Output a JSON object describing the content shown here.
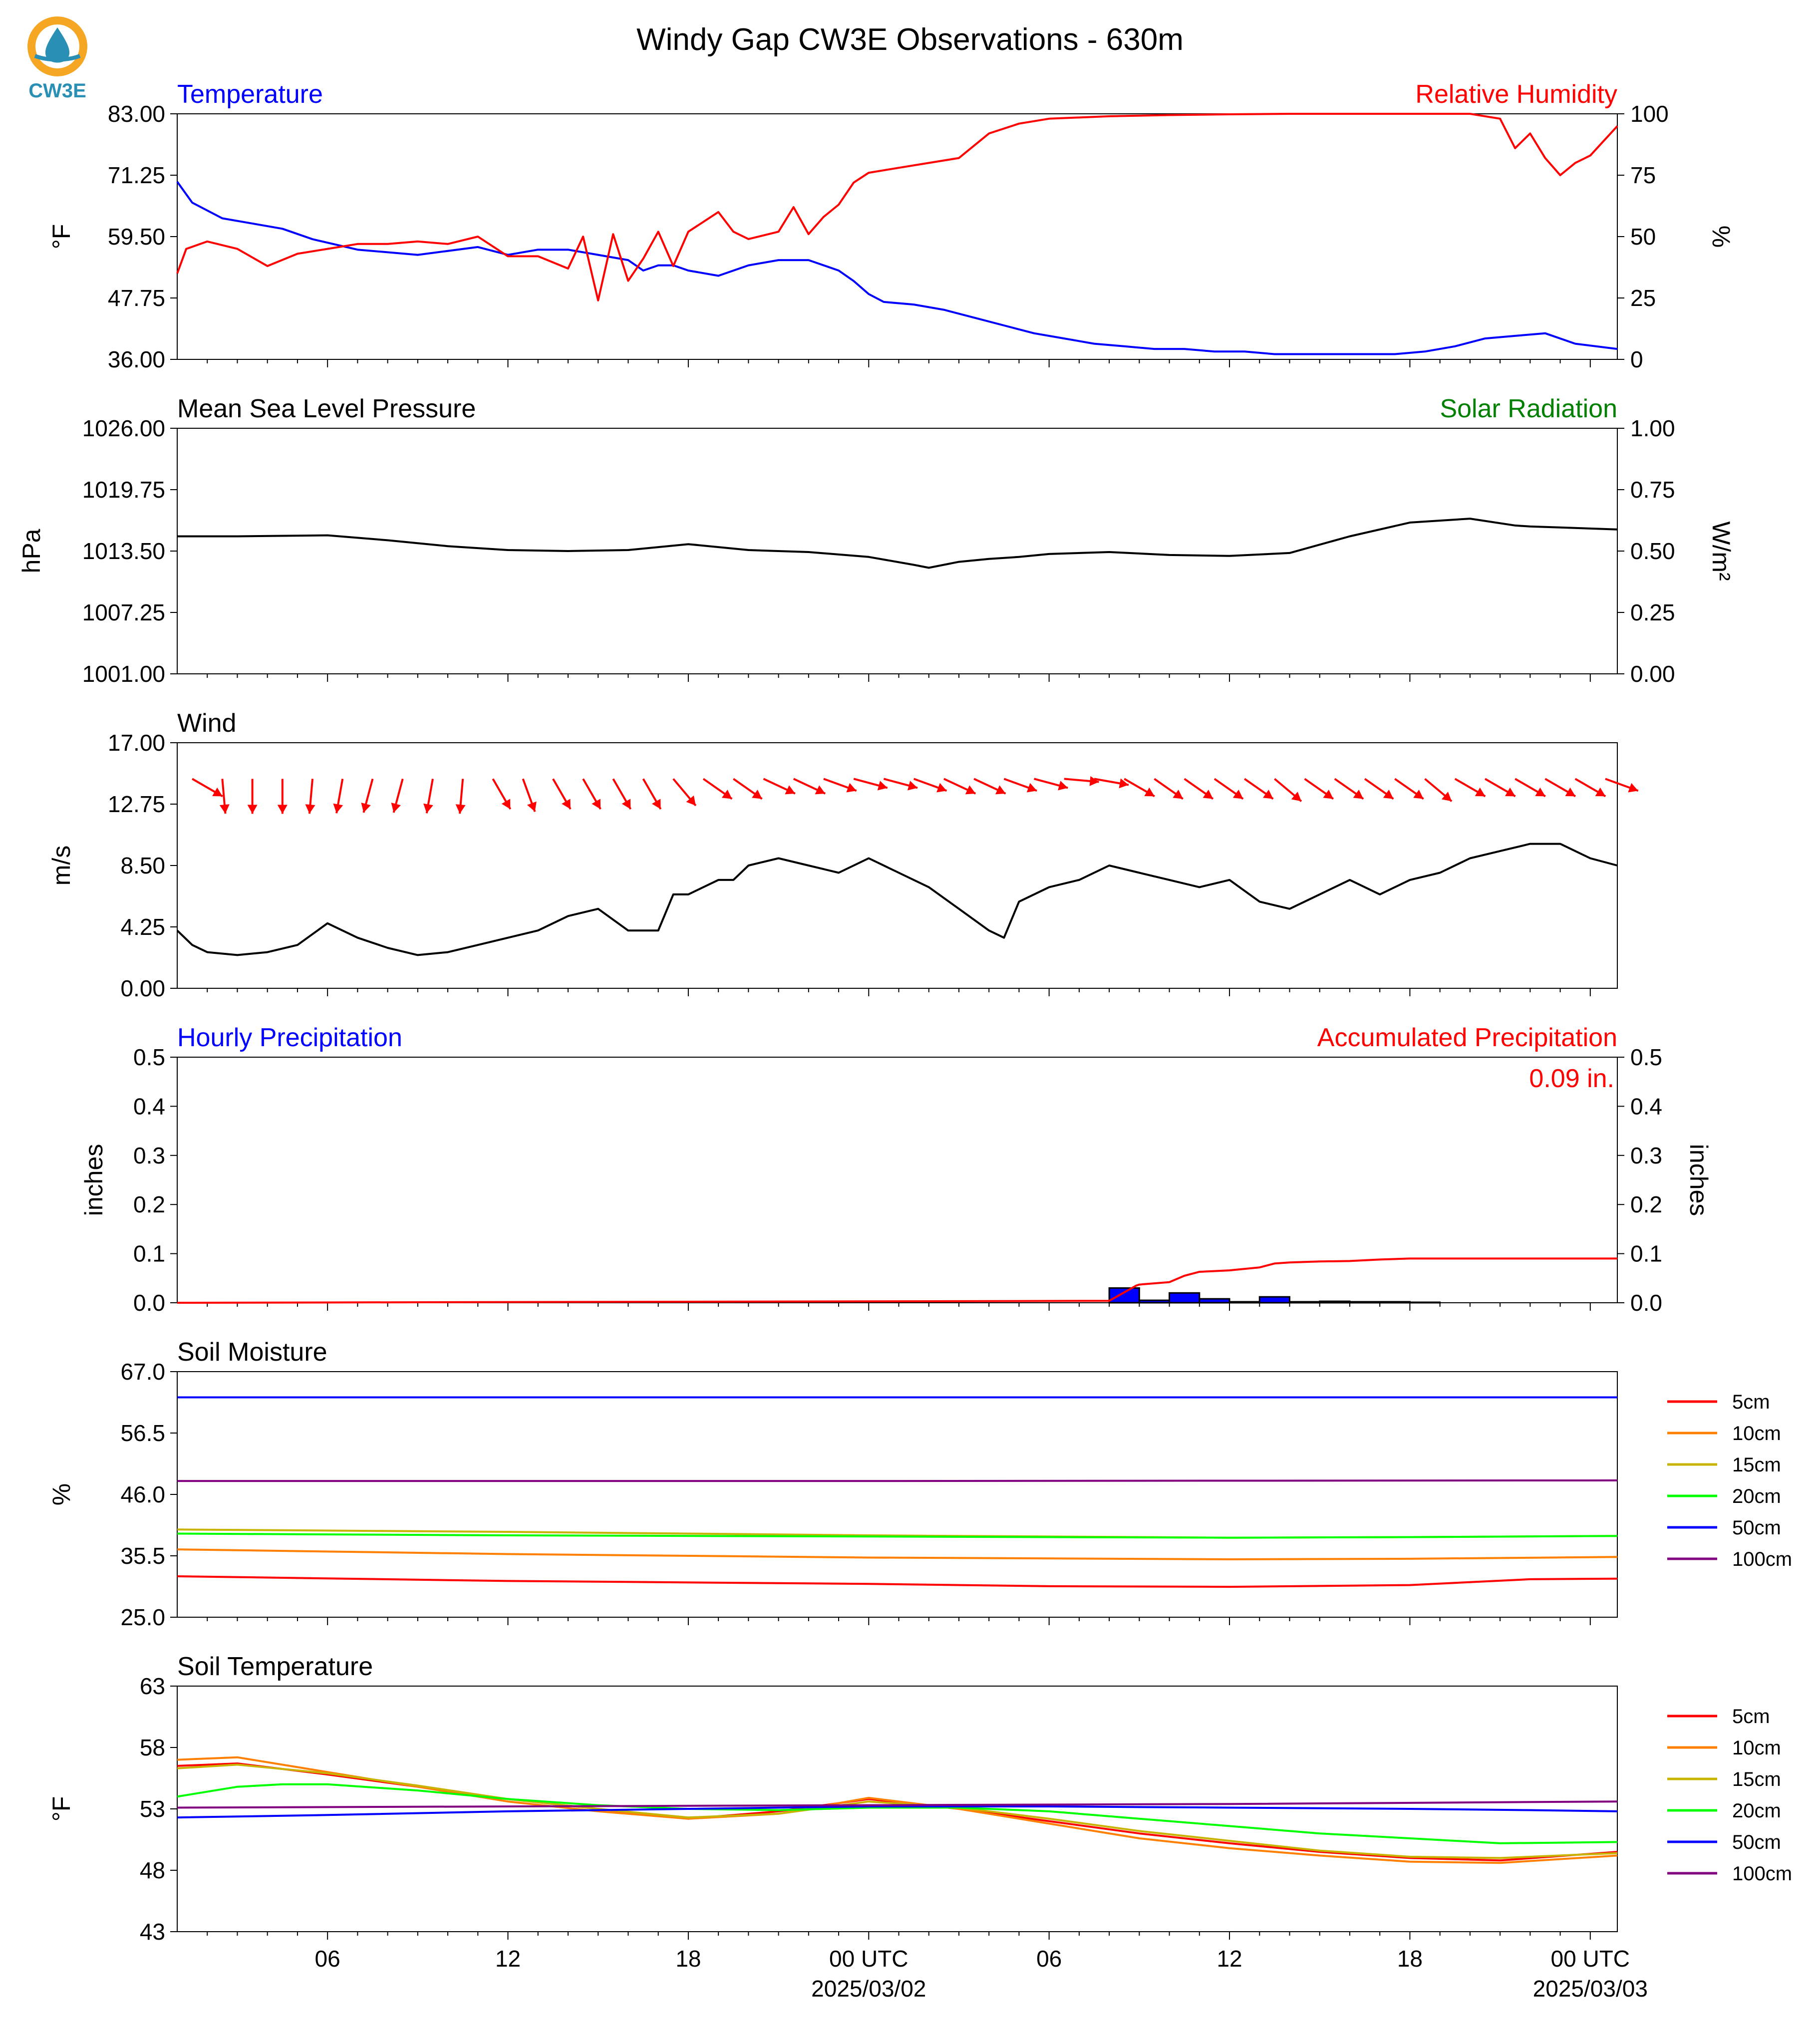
{
  "title": "Windy Gap CW3E Observations - 630m",
  "logo": {
    "text": "CW3E",
    "colors": {
      "ring": "#f5a623",
      "drop": "#2a8fb5",
      "text": "#2a8fb5"
    }
  },
  "colors": {
    "temperature": "#0000ff",
    "humidity": "#ff0000",
    "pressure": "#000000",
    "solar": "#008000",
    "wind_speed": "#000000",
    "wind_arrows": "#ff0000",
    "precip_bars": "#0000ff",
    "precip_accum": "#ff0000"
  },
  "x_axis": {
    "tick_labels": [
      "06",
      "12",
      "18",
      "00 UTC",
      "06",
      "12",
      "18",
      "00 UTC"
    ],
    "tick_hours": [
      6,
      12,
      18,
      24,
      30,
      36,
      42,
      48
    ],
    "date_labels": [
      {
        "hour": 24,
        "text": "2025/03/02"
      },
      {
        "hour": 48,
        "text": "2025/03/03"
      }
    ],
    "range_hours": [
      1,
      48.9
    ]
  },
  "chart_data": [
    {
      "type": "line",
      "panel": "temperature_humidity",
      "left_label": "Temperature",
      "right_label": "Relative Humidity",
      "ylabel_left": "°F",
      "ylabel_right": "%",
      "ylim_left": [
        36,
        83
      ],
      "ylim_right": [
        0,
        100
      ],
      "yticks_left": [
        "36.00",
        "47.75",
        "59.50",
        "71.25",
        "83.00"
      ],
      "yticks_right": [
        "0",
        "25",
        "50",
        "75",
        "100"
      ],
      "series": [
        {
          "axis": "left",
          "color": "#0000ff",
          "x": [
            1,
            1.5,
            2.5,
            3.5,
            4.5,
            5.5,
            7,
            9,
            11,
            12,
            13,
            14,
            15,
            16,
            16.5,
            17,
            17.5,
            18,
            19,
            20,
            21,
            22,
            23,
            23.5,
            24,
            24.5,
            25.5,
            26.5,
            27.5,
            28.5,
            29.5,
            30.5,
            31.5,
            32.5,
            33.5,
            34.5,
            35.5,
            36.5,
            37.5,
            38.5,
            39.5,
            40.5,
            41.5,
            42.5,
            43.5,
            44.5,
            45.5,
            46.5,
            47.5,
            48.9
          ],
          "y": [
            70,
            66,
            63,
            62,
            61,
            59,
            57,
            56,
            57.5,
            56,
            57,
            57,
            56,
            55,
            53,
            54,
            54,
            53,
            52,
            54,
            55,
            55,
            53,
            51,
            48.5,
            47,
            46.5,
            45.5,
            44,
            42.5,
            41,
            40,
            39,
            38.5,
            38,
            38,
            37.5,
            37.5,
            37,
            37,
            37,
            37,
            37,
            37.5,
            38.5,
            40,
            40.5,
            41,
            39,
            38
          ]
        },
        {
          "axis": "right",
          "color": "#ff0000",
          "x": [
            1,
            1.3,
            2,
            3,
            4,
            5,
            6,
            7,
            8,
            9,
            10,
            11,
            12,
            13,
            14,
            14.5,
            15,
            15.5,
            16,
            16.5,
            17,
            17.5,
            18,
            19,
            19.5,
            20,
            21,
            21.5,
            22,
            22.5,
            23,
            23.5,
            24,
            25,
            26,
            27,
            28,
            29,
            30,
            32,
            34,
            36,
            38,
            40,
            42,
            43,
            44,
            45,
            45.5,
            46,
            46.5,
            47,
            47.5,
            48,
            48.9
          ],
          "y": [
            35,
            45,
            48,
            45,
            38,
            43,
            45,
            47,
            47,
            48,
            47,
            50,
            42,
            42,
            37,
            50,
            24,
            51,
            32,
            41,
            52,
            38,
            52,
            60,
            52,
            49,
            52,
            62,
            51,
            58,
            63,
            72,
            76,
            78,
            80,
            82,
            92,
            96,
            98,
            99,
            99.5,
            99.8,
            100,
            100,
            100,
            100,
            100,
            98,
            86,
            92,
            82,
            75,
            80,
            83,
            95
          ]
        }
      ]
    },
    {
      "type": "line",
      "panel": "pressure_solar",
      "left_label": "Mean Sea Level Pressure",
      "right_label": "Solar Radiation",
      "ylabel_left": "hPa",
      "ylabel_right": "W/m²",
      "ylim_left": [
        1001,
        1026
      ],
      "ylim_right": [
        0,
        1
      ],
      "yticks_left": [
        "1001.00",
        "1007.25",
        "1013.50",
        "1019.75",
        "1026.00"
      ],
      "yticks_right": [
        "0.00",
        "0.25",
        "0.50",
        "0.75",
        "1.00"
      ],
      "series": [
        {
          "axis": "left",
          "color": "#000000",
          "x": [
            1,
            3,
            6,
            8,
            10,
            12,
            14,
            16,
            18,
            20,
            22,
            24,
            25.5,
            26,
            27,
            28,
            29,
            30,
            32,
            34,
            36,
            38,
            40,
            42,
            44,
            45.5,
            46,
            47,
            48.9
          ],
          "y": [
            1015,
            1015,
            1015.1,
            1014.6,
            1014,
            1013.6,
            1013.5,
            1013.6,
            1014.2,
            1013.6,
            1013.4,
            1012.9,
            1012.1,
            1011.8,
            1012.4,
            1012.7,
            1012.9,
            1013.2,
            1013.4,
            1013.1,
            1013,
            1013.3,
            1015,
            1016.4,
            1016.8,
            1016.1,
            1016.0,
            1015.9,
            1015.7
          ]
        }
      ]
    },
    {
      "type": "line",
      "panel": "wind",
      "left_label": "Wind",
      "ylabel_left": "m/s",
      "ylim_left": [
        0,
        17
      ],
      "yticks_left": [
        "0.00",
        "4.25",
        "8.50",
        "12.75",
        "17.00"
      ],
      "series": [
        {
          "axis": "left",
          "color": "#000000",
          "x": [
            1,
            1.5,
            2,
            3,
            4,
            5,
            6,
            7,
            8,
            9,
            10,
            11,
            12,
            13,
            14,
            15,
            16,
            17,
            17.5,
            18,
            19,
            19.5,
            20,
            21,
            22,
            23,
            24,
            25,
            26,
            27,
            28,
            28.5,
            29,
            30,
            31,
            32,
            33,
            34,
            35,
            36,
            37,
            38,
            39,
            40,
            41,
            42,
            43,
            44,
            45,
            46,
            47,
            48,
            48.9
          ],
          "y": [
            4,
            3,
            2.5,
            2.3,
            2.5,
            3,
            4.5,
            3.5,
            2.8,
            2.3,
            2.5,
            3,
            3.5,
            4,
            5,
            5.5,
            4,
            4,
            6.5,
            6.5,
            7.5,
            7.5,
            8.5,
            9,
            8.5,
            8,
            9,
            8,
            7,
            5.5,
            4,
            3.5,
            6,
            7,
            7.5,
            8.5,
            8,
            7.5,
            7,
            7.5,
            6,
            5.5,
            6.5,
            7.5,
            6.5,
            7.5,
            8,
            9,
            9.5,
            10,
            10,
            9,
            8.5
          ]
        }
      ],
      "arrows": {
        "color": "#ff0000",
        "x": [
          1.5,
          2.5,
          3.5,
          4.5,
          5.5,
          6.5,
          7.5,
          8.5,
          9.5,
          10.5,
          11.5,
          12.5,
          13.5,
          14.5,
          15.5,
          16.5,
          17.5,
          18.5,
          19.5,
          20.5,
          21.5,
          22.5,
          23.5,
          24.5,
          25.5,
          26.5,
          27.5,
          28.5,
          29.5,
          30.5,
          31.5,
          32.5,
          33.5,
          34.5,
          35.5,
          36.5,
          37.5,
          38.5,
          39.5,
          40.5,
          41.5,
          42.5,
          43.5,
          44.5,
          45.5,
          46.5,
          47.5,
          48.5
        ],
        "direction_deg": [
          300,
          355,
          0,
          0,
          5,
          10,
          15,
          15,
          10,
          5,
          330,
          340,
          330,
          330,
          330,
          330,
          320,
          305,
          305,
          295,
          295,
          290,
          285,
          285,
          290,
          295,
          295,
          290,
          285,
          275,
          280,
          300,
          305,
          305,
          305,
          305,
          310,
          305,
          305,
          305,
          305,
          310,
          300,
          300,
          300,
          300,
          300,
          290
        ]
      }
    },
    {
      "type": "bar",
      "panel": "precipitation",
      "left_label": "Hourly Precipitation",
      "right_label": "Accumulated Precipitation",
      "total_label": "0.09 in.",
      "ylabel_left": "inches",
      "ylabel_right": "inches",
      "ylim_left": [
        0,
        0.5
      ],
      "ylim_right": [
        0,
        0.5
      ],
      "yticks_left": [
        "0.0",
        "0.1",
        "0.2",
        "0.3",
        "0.4",
        "0.5"
      ],
      "yticks_right": [
        "0.0",
        "0.1",
        "0.2",
        "0.3",
        "0.4",
        "0.5"
      ],
      "bars": {
        "color": "#0000ff",
        "hour_start": [
          32,
          33,
          34,
          35,
          36,
          37,
          38,
          39,
          40,
          41,
          42,
          43
        ],
        "values": [
          0.03,
          0.005,
          0.02,
          0.008,
          0.002,
          0.012,
          0.002,
          0.003,
          0.002,
          0.002,
          0.001,
          0.0
        ]
      },
      "accum": {
        "color": "#ff0000",
        "x": [
          1,
          26,
          32,
          32.9,
          33,
          34,
          34.5,
          35,
          36,
          37,
          37.5,
          38,
          39,
          40,
          41,
          42,
          43,
          48.9
        ],
        "y": [
          0,
          0.003,
          0.004,
          0.035,
          0.037,
          0.042,
          0.055,
          0.063,
          0.066,
          0.072,
          0.08,
          0.082,
          0.084,
          0.085,
          0.088,
          0.09,
          0.09,
          0.09
        ]
      }
    },
    {
      "type": "line",
      "panel": "soil_moisture",
      "left_label": "Soil Moisture",
      "ylabel_left": "%",
      "ylim_left": [
        25,
        67
      ],
      "yticks_left": [
        "25.0",
        "35.5",
        "46.0",
        "56.5",
        "67.0"
      ],
      "legend": [
        "5cm",
        "10cm",
        "15cm",
        "20cm",
        "50cm",
        "100cm"
      ],
      "series": [
        {
          "name": "5cm",
          "color": "#ff0000",
          "x": [
            1,
            12,
            24,
            30,
            36,
            42,
            46,
            48.9
          ],
          "y": [
            32,
            31.2,
            30.7,
            30.3,
            30.2,
            30.5,
            31.5,
            31.6
          ]
        },
        {
          "name": "10cm",
          "color": "#ff8000",
          "x": [
            1,
            12,
            24,
            36,
            42,
            48.9
          ],
          "y": [
            36.6,
            35.8,
            35.2,
            34.9,
            35,
            35.3
          ]
        },
        {
          "name": "15cm",
          "color": "#c8b400",
          "x": [
            1,
            12,
            24,
            36,
            42,
            48.9
          ],
          "y": [
            40,
            39.6,
            39,
            38.6,
            38.7,
            38.9
          ]
        },
        {
          "name": "20cm",
          "color": "#00ff00",
          "x": [
            1,
            12,
            24,
            36,
            42,
            48.9
          ],
          "y": [
            39.3,
            39,
            38.8,
            38.6,
            38.7,
            38.9
          ]
        },
        {
          "name": "50cm",
          "color": "#0000ff",
          "x": [
            1,
            24,
            48.9
          ],
          "y": [
            62.6,
            62.6,
            62.6
          ]
        },
        {
          "name": "100cm",
          "color": "#800080",
          "x": [
            1,
            24,
            48.9
          ],
          "y": [
            48.3,
            48.3,
            48.4
          ]
        }
      ]
    },
    {
      "type": "line",
      "panel": "soil_temperature",
      "left_label": "Soil Temperature",
      "ylabel_left": "°F",
      "ylim_left": [
        43,
        63
      ],
      "yticks_left": [
        "43",
        "48",
        "53",
        "58",
        "63"
      ],
      "legend": [
        "5cm",
        "10cm",
        "15cm",
        "20cm",
        "50cm",
        "100cm"
      ],
      "series": [
        {
          "name": "5cm",
          "color": "#ff0000",
          "x": [
            1,
            3,
            6,
            9,
            12,
            15,
            18,
            21,
            24,
            27,
            30,
            33,
            36,
            39,
            42,
            45,
            48.9
          ],
          "y": [
            56.5,
            56.7,
            55.8,
            54.8,
            53.8,
            53,
            52.2,
            52.8,
            53.8,
            53,
            52,
            51,
            50.2,
            49.5,
            49,
            48.8,
            49.5
          ]
        },
        {
          "name": "10cm",
          "color": "#ff8000",
          "x": [
            1,
            3,
            6,
            9,
            12,
            15,
            18,
            21,
            24,
            27,
            30,
            33,
            36,
            39,
            42,
            45,
            48.9
          ],
          "y": [
            57,
            57.2,
            56,
            54.8,
            53.6,
            52.8,
            52.2,
            52.6,
            53.9,
            53,
            51.8,
            50.6,
            49.8,
            49.2,
            48.7,
            48.6,
            49.2
          ]
        },
        {
          "name": "15cm",
          "color": "#c8b400",
          "x": [
            1,
            3,
            6,
            9,
            12,
            15,
            18,
            21,
            24,
            27,
            30,
            33,
            36,
            39,
            42,
            45,
            48.9
          ],
          "y": [
            56.3,
            56.6,
            55.9,
            54.9,
            53.8,
            53,
            52.3,
            52.6,
            53.6,
            53.1,
            52.2,
            51.2,
            50.4,
            49.6,
            49.1,
            49,
            49.4
          ]
        },
        {
          "name": "20cm",
          "color": "#00ff00",
          "x": [
            1,
            3,
            4.5,
            6,
            9,
            12,
            15,
            18,
            21,
            24,
            27,
            30,
            33,
            36,
            39,
            42,
            45,
            48.9
          ],
          "y": [
            54,
            54.8,
            55,
            55,
            54.5,
            53.8,
            53.3,
            53,
            52.9,
            53.1,
            53.1,
            52.8,
            52.2,
            51.6,
            51,
            50.6,
            50.2,
            50.3
          ]
        },
        {
          "name": "50cm",
          "color": "#0000ff",
          "x": [
            1,
            6,
            12,
            18,
            24,
            30,
            36,
            42,
            46,
            48.9
          ],
          "y": [
            52.3,
            52.5,
            52.8,
            53,
            53.2,
            53.2,
            53.1,
            53,
            52.9,
            52.8
          ]
        },
        {
          "name": "100cm",
          "color": "#800080",
          "x": [
            1,
            12,
            24,
            36,
            48.9
          ],
          "y": [
            53.1,
            53.2,
            53.3,
            53.4,
            53.6
          ]
        }
      ]
    }
  ]
}
